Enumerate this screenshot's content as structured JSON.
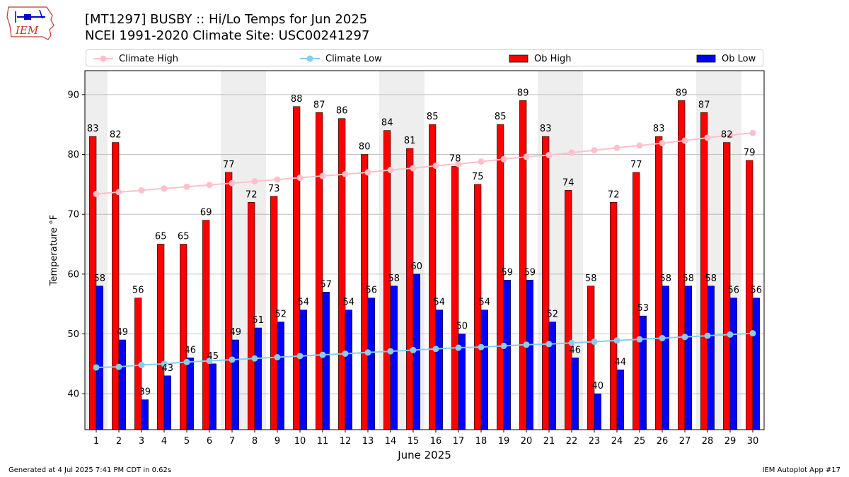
{
  "header": {
    "title_line1": "[MT1297] BUSBY :: Hi/Lo Temps for Jun 2025",
    "title_line2": "NCEI 1991-2020 Climate Site: USC00241297",
    "logo_text": "IEM"
  },
  "legend": {
    "climate_high": "Climate High",
    "climate_low": "Climate Low",
    "ob_high": "Ob High",
    "ob_low": "Ob Low"
  },
  "footer": {
    "generated": "Generated at 4 Jul 2025 7:41 PM CDT in 0.62s",
    "app": "IEM Autoplot App #17"
  },
  "colors": {
    "ob_high": "#ff0000",
    "ob_low": "#0000ff",
    "climate_high": "#ffc0cb",
    "climate_low": "#87ceeb",
    "weekend_shade": "#eeeeee",
    "grid": "#b0b0b0"
  },
  "chart_data": {
    "type": "bar",
    "title": "[MT1297] BUSBY :: Hi/Lo Temps for Jun 2025",
    "subtitle": "NCEI 1991-2020 Climate Site: USC00241297",
    "xlabel": "June 2025",
    "ylabel": "Temperature °F",
    "ylim": [
      34,
      94
    ],
    "yticks": [
      40,
      50,
      60,
      70,
      80,
      90
    ],
    "grid": "horizontal",
    "legend_position": "top",
    "categories": [
      "1",
      "2",
      "3",
      "4",
      "5",
      "6",
      "7",
      "8",
      "9",
      "10",
      "11",
      "12",
      "13",
      "14",
      "15",
      "16",
      "17",
      "18",
      "19",
      "20",
      "21",
      "22",
      "23",
      "24",
      "25",
      "26",
      "27",
      "28",
      "29",
      "30"
    ],
    "shaded_days": [
      1,
      7,
      8,
      14,
      15,
      21,
      22,
      28,
      29
    ],
    "series": [
      {
        "name": "Ob High",
        "kind": "bar",
        "values": [
          83,
          82,
          56,
          65,
          65,
          69,
          77,
          72,
          73,
          88,
          87,
          86,
          80,
          84,
          81,
          85,
          78,
          75,
          85,
          89,
          83,
          74,
          58,
          72,
          77,
          83,
          89,
          87,
          82,
          79
        ]
      },
      {
        "name": "Ob Low",
        "kind": "bar",
        "values": [
          58,
          49,
          39,
          43,
          46,
          45,
          49,
          51,
          52,
          54,
          57,
          54,
          56,
          58,
          60,
          54,
          50,
          54,
          59,
          59,
          52,
          46,
          40,
          44,
          53,
          58,
          58,
          58,
          56,
          56
        ]
      },
      {
        "name": "Climate High",
        "kind": "line",
        "values": [
          73.4,
          73.7,
          74.0,
          74.3,
          74.6,
          74.9,
          75.2,
          75.5,
          75.8,
          76.1,
          76.4,
          76.7,
          77.0,
          77.4,
          77.7,
          78.1,
          78.4,
          78.8,
          79.2,
          79.6,
          79.9,
          80.3,
          80.7,
          81.1,
          81.5,
          81.9,
          82.3,
          82.8,
          83.2,
          83.6
        ]
      },
      {
        "name": "Climate Low",
        "kind": "line",
        "values": [
          44.4,
          44.5,
          44.8,
          45.0,
          45.3,
          45.5,
          45.7,
          45.9,
          46.1,
          46.3,
          46.5,
          46.7,
          46.9,
          47.1,
          47.3,
          47.5,
          47.7,
          47.8,
          48.0,
          48.2,
          48.3,
          48.5,
          48.7,
          48.9,
          49.1,
          49.3,
          49.5,
          49.7,
          49.9,
          50.1
        ]
      }
    ]
  }
}
